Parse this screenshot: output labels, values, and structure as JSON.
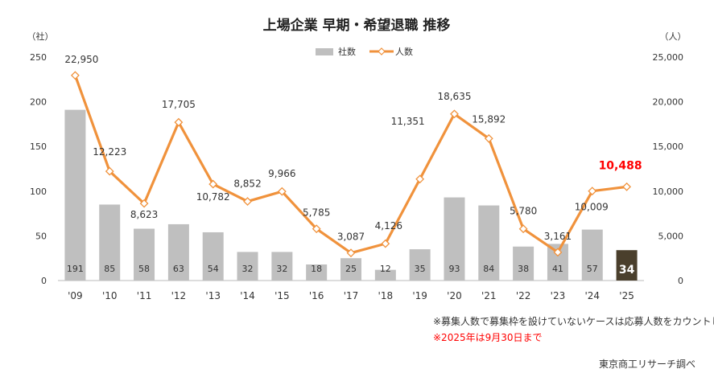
{
  "chart_data": {
    "type": "bar+line",
    "title": "上場企業 早期・希望退職 推移",
    "left_axis_unit": "（社）",
    "right_axis_unit": "（人）",
    "categories": [
      "'09",
      "'10",
      "'11",
      "'12",
      "'13",
      "'14",
      "'15",
      "'16",
      "'17",
      "'18",
      "'19",
      "'20",
      "'21",
      "'22",
      "'23",
      "'24",
      "'25"
    ],
    "left_ticks": [
      0,
      50,
      100,
      150,
      200,
      250
    ],
    "right_ticks": [
      "0",
      "5,000",
      "10,000",
      "15,000",
      "20,000",
      "25,000"
    ],
    "ylim_left": [
      0,
      250
    ],
    "ylim_right": [
      0,
      25000
    ],
    "grid": false,
    "legend_position": "top-center",
    "series": [
      {
        "name": "社数",
        "kind": "bar",
        "axis": "left",
        "color": "#bfbfbf",
        "highlight_last_color": "#4a3f2c",
        "values": [
          191,
          85,
          58,
          63,
          54,
          32,
          32,
          18,
          25,
          12,
          35,
          93,
          84,
          38,
          41,
          57,
          34
        ],
        "labels": [
          "191",
          "85",
          "58",
          "63",
          "54",
          "32",
          "32",
          "18",
          "25",
          "12",
          "35",
          "93",
          "84",
          "38",
          "41",
          "57",
          "34"
        ]
      },
      {
        "name": "人数",
        "kind": "line",
        "axis": "right",
        "color": "#f0923c",
        "highlight_last_label_color": "#ff0000",
        "values": [
          22950,
          12223,
          8623,
          17705,
          10782,
          8852,
          9966,
          5785,
          3087,
          4126,
          11351,
          18635,
          15892,
          5780,
          3161,
          10009,
          10488
        ],
        "labels": [
          "22,950",
          "12,223",
          "8,623",
          "17,705",
          "10,782",
          "8,852",
          "9,966",
          "5,785",
          "3,087",
          "4,126",
          "11,351",
          "18,635",
          "15,892",
          "5,780",
          "3,161",
          "10,009",
          "10,488"
        ]
      }
    ]
  },
  "notes": {
    "note1": "※募集人数で募集枠を設けていないケースは応募人数をカウントした",
    "note2": "※2025年は9月30日まで",
    "source": "東京商工リサーチ調べ",
    "note1_color": "#333333",
    "note2_color": "#ff0000"
  }
}
